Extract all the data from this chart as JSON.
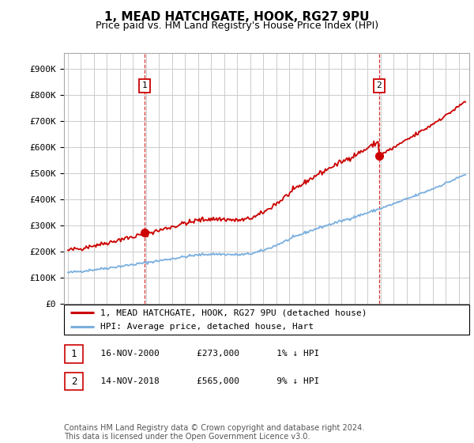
{
  "title": "1, MEAD HATCHGATE, HOOK, RG27 9PU",
  "subtitle": "Price paid vs. HM Land Registry's House Price Index (HPI)",
  "title_fontsize": 11,
  "subtitle_fontsize": 9,
  "ylabel_ticks": [
    "£0",
    "£100K",
    "£200K",
    "£300K",
    "£400K",
    "£500K",
    "£600K",
    "£700K",
    "£800K",
    "£900K"
  ],
  "ytick_values": [
    0,
    100000,
    200000,
    300000,
    400000,
    500000,
    600000,
    700000,
    800000,
    900000
  ],
  "ylim": [
    0,
    960000
  ],
  "xlim_start": 1994.7,
  "xlim_end": 2025.8,
  "background_color": "#ffffff",
  "grid_color": "#cccccc",
  "red_line_color": "#cc0000",
  "blue_line_color": "#7aafdf",
  "marker1_year": 2000.88,
  "marker1_value": 273000,
  "marker2_year": 2018.88,
  "marker2_value": 565000,
  "vline1_year": 2000.88,
  "vline2_year": 2018.88,
  "legend_label_red": "1, MEAD HATCHGATE, HOOK, RG27 9PU (detached house)",
  "legend_label_blue": "HPI: Average price, detached house, Hart",
  "legend_fontsize": 8,
  "footer": "Contains HM Land Registry data © Crown copyright and database right 2024.\nThis data is licensed under the Open Government Licence v3.0.",
  "footnote_fontsize": 7
}
